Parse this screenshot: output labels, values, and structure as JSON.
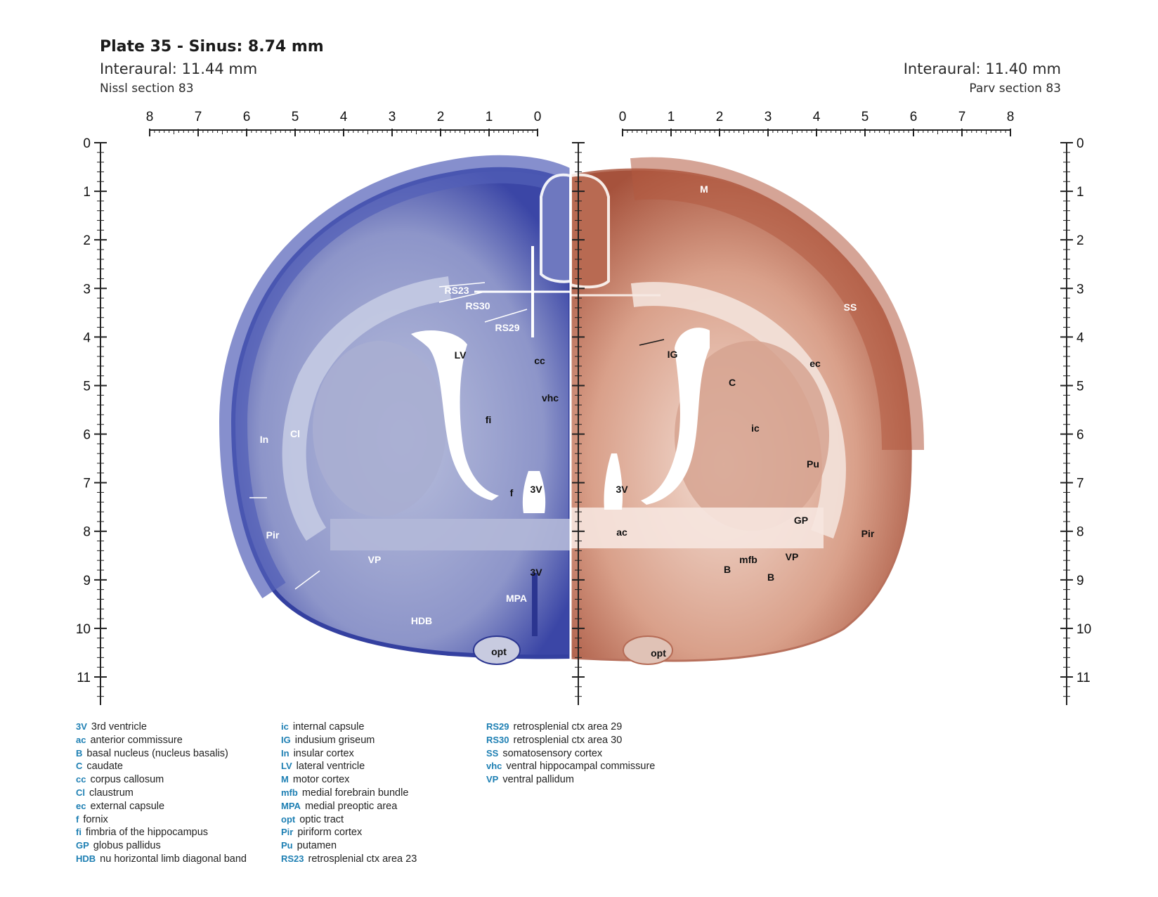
{
  "header": {
    "title": "Plate 35 - Sinus: 8.74 mm",
    "left": {
      "interaural": "Interaural: 11.44 mm",
      "section": "Nissl section 83"
    },
    "right": {
      "interaural": "Interaural: 11.40 mm",
      "section": "Parv section 83"
    }
  },
  "scales": {
    "top_left": [
      "8",
      "7",
      "6",
      "5",
      "4",
      "3",
      "2",
      "1",
      "0"
    ],
    "top_right": [
      "0",
      "1",
      "2",
      "3",
      "4",
      "5",
      "6",
      "7",
      "8"
    ],
    "vertical": [
      "0",
      "1",
      "2",
      "3",
      "4",
      "5",
      "6",
      "7",
      "8",
      "9",
      "10",
      "11"
    ]
  },
  "stain_colors": {
    "nissl": "#4a56b0",
    "parv": "#b86a52",
    "label_abbr": "#1d7fb3"
  },
  "labels": {
    "nissl": [
      {
        "text": "RS23",
        "color": "white"
      },
      {
        "text": "RS30",
        "color": "white"
      },
      {
        "text": "RS29",
        "color": "white"
      },
      {
        "text": "LV",
        "color": "black"
      },
      {
        "text": "cc",
        "color": "black"
      },
      {
        "text": "vhc",
        "color": "black"
      },
      {
        "text": "fi",
        "color": "black"
      },
      {
        "text": "In",
        "color": "white"
      },
      {
        "text": "Cl",
        "color": "white"
      },
      {
        "text": "f",
        "color": "black"
      },
      {
        "text": "3V",
        "color": "black"
      },
      {
        "text": "Pir",
        "color": "white"
      },
      {
        "text": "VP",
        "color": "white"
      },
      {
        "text": "3V",
        "color": "black"
      },
      {
        "text": "MPA",
        "color": "white"
      },
      {
        "text": "HDB",
        "color": "white"
      },
      {
        "text": "opt",
        "color": "black"
      }
    ],
    "parv": [
      {
        "text": "M",
        "color": "white"
      },
      {
        "text": "SS",
        "color": "white"
      },
      {
        "text": "IG",
        "color": "black"
      },
      {
        "text": "ec",
        "color": "black"
      },
      {
        "text": "C",
        "color": "black"
      },
      {
        "text": "ic",
        "color": "black"
      },
      {
        "text": "Pu",
        "color": "black"
      },
      {
        "text": "3V",
        "color": "black"
      },
      {
        "text": "GP",
        "color": "black"
      },
      {
        "text": "ac",
        "color": "black"
      },
      {
        "text": "Pir",
        "color": "black"
      },
      {
        "text": "VP",
        "color": "black"
      },
      {
        "text": "mfb",
        "color": "black"
      },
      {
        "text": "B",
        "color": "black"
      },
      {
        "text": "B",
        "color": "black"
      },
      {
        "text": "opt",
        "color": "black"
      }
    ]
  },
  "legend": [
    [
      {
        "abbr": "3V",
        "desc": "3rd ventricle"
      },
      {
        "abbr": "ac",
        "desc": "anterior commissure"
      },
      {
        "abbr": "B",
        "desc": "basal nucleus (nucleus basalis)"
      },
      {
        "abbr": "C",
        "desc": "caudate"
      },
      {
        "abbr": "cc",
        "desc": "corpus callosum"
      },
      {
        "abbr": "Cl",
        "desc": "claustrum"
      },
      {
        "abbr": "ec",
        "desc": "external capsule"
      },
      {
        "abbr": "f",
        "desc": "fornix"
      },
      {
        "abbr": "fi",
        "desc": "fimbria of the hippocampus"
      },
      {
        "abbr": "GP",
        "desc": "globus pallidus"
      },
      {
        "abbr": "HDB",
        "desc": "nu horizontal limb diagonal band"
      }
    ],
    [
      {
        "abbr": "ic",
        "desc": "internal capsule"
      },
      {
        "abbr": "IG",
        "desc": "indusium griseum"
      },
      {
        "abbr": "In",
        "desc": "insular cortex"
      },
      {
        "abbr": "LV",
        "desc": "lateral ventricle"
      },
      {
        "abbr": "M",
        "desc": "motor cortex"
      },
      {
        "abbr": "mfb",
        "desc": "medial forebrain bundle"
      },
      {
        "abbr": "MPA",
        "desc": "medial preoptic area"
      },
      {
        "abbr": "opt",
        "desc": "optic tract"
      },
      {
        "abbr": "Pir",
        "desc": "piriform cortex"
      },
      {
        "abbr": "Pu",
        "desc": "putamen"
      },
      {
        "abbr": "RS23",
        "desc": "retrosplenial ctx area 23"
      }
    ],
    [
      {
        "abbr": "RS29",
        "desc": "retrosplenial ctx area 29"
      },
      {
        "abbr": "RS30",
        "desc": "retrosplenial ctx area 30"
      },
      {
        "abbr": "SS",
        "desc": "somatosensory cortex"
      },
      {
        "abbr": "vhc",
        "desc": "ventral hippocampal commissure"
      },
      {
        "abbr": "VP",
        "desc": "ventral pallidum"
      }
    ]
  ]
}
